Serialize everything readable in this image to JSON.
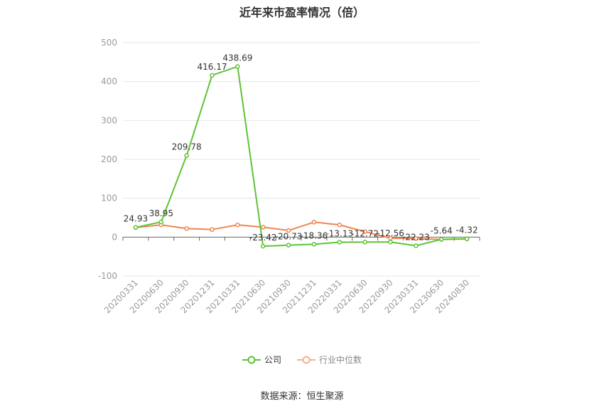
{
  "chart_data": {
    "type": "line",
    "title": "近年来市盈率情况（倍）",
    "categories": [
      "20200331",
      "20200630",
      "20200930",
      "20201231",
      "20210331",
      "20210630",
      "20210930",
      "20211231",
      "20220331",
      "20220630",
      "20220930",
      "20230331",
      "20230630",
      "20240830"
    ],
    "ylim": [
      -100,
      500
    ],
    "yticks": [
      -100,
      0,
      100,
      200,
      300,
      400,
      500
    ],
    "grid": true,
    "legend_position": "bottom",
    "series": [
      {
        "name": "公司",
        "color": "#5ec434",
        "values": [
          24.93,
          38.95,
          209.78,
          416.17,
          438.69,
          -23.42,
          -20.73,
          -18.36,
          -13.13,
          -12.72,
          -12.56,
          -22.23,
          -5.64,
          -4.32
        ],
        "labels": [
          "24.93",
          "38.95",
          "209.78",
          "416.17",
          "438.69",
          "-23.42",
          "-20.73",
          "-18.36",
          "-13.13",
          "-12.72",
          "-12.56",
          "-22.23",
          "-5.64",
          "-4.32"
        ]
      },
      {
        "name": "行业中位数",
        "color": "#f08650",
        "values": [
          24.5,
          31.5,
          22.0,
          19.5,
          31.5,
          25.5,
          17.0,
          38.5,
          31.5,
          14.0,
          -3.0,
          -3.5,
          -6.0,
          -4.8
        ]
      }
    ]
  },
  "source": "数据来源：恒生聚源"
}
